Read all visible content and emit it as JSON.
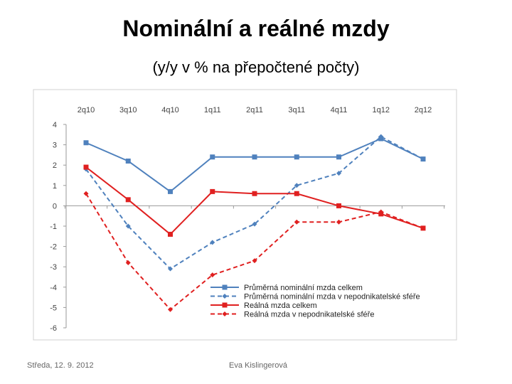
{
  "slide": {
    "title": "Nominální a reálné mzdy",
    "subtitle": "(y/y v % na přepočtené počty)",
    "footer_date": "Středa, 12. 9. 2012",
    "footer_author": "Eva Kislingerová"
  },
  "chart_data": {
    "type": "line",
    "categories": [
      "2q10",
      "3q10",
      "4q10",
      "1q11",
      "2q11",
      "3q11",
      "4q11",
      "1q12",
      "2q12"
    ],
    "ylim": [
      -6,
      4
    ],
    "yticks": [
      4,
      3,
      2,
      1,
      0,
      -1,
      -2,
      -3,
      -4,
      -5,
      -6
    ],
    "ytick_labels": [
      "4",
      "3",
      "2",
      "1",
      "0",
      "-1",
      "-2",
      "-3",
      "-4",
      "-5",
      "-6"
    ],
    "legend_position": "bottom-right",
    "grid": false,
    "series": [
      {
        "name": "Průměrná nominální mzda celkem",
        "color": "#4f81bd",
        "style": "solid",
        "marker": "square",
        "values": [
          3.1,
          2.2,
          0.7,
          2.4,
          2.4,
          2.4,
          2.4,
          3.3,
          2.3
        ]
      },
      {
        "name": "Průměrná nominální mzda v nepodnikatelské sféře",
        "color": "#4f81bd",
        "style": "dashed",
        "marker": "diamond",
        "values": [
          1.8,
          -1.0,
          -3.1,
          -1.8,
          -0.9,
          1.0,
          1.6,
          3.4,
          2.3
        ]
      },
      {
        "name": "Reálná mzda celkem",
        "color": "#e02020",
        "style": "solid",
        "marker": "square",
        "values": [
          1.9,
          0.3,
          -1.4,
          0.7,
          0.6,
          0.6,
          0.0,
          -0.4,
          -1.1
        ]
      },
      {
        "name": "Reálná mzda v nepodnikatelské sféře",
        "color": "#e02020",
        "style": "dashed",
        "marker": "diamond",
        "values": [
          0.6,
          -2.8,
          -5.1,
          -3.4,
          -2.7,
          -0.8,
          -0.8,
          -0.3,
          -1.1
        ]
      }
    ]
  }
}
